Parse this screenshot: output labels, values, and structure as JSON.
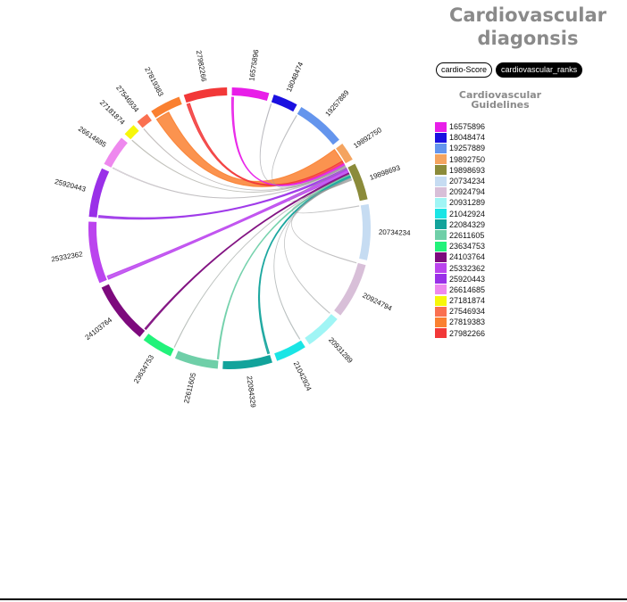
{
  "page": {
    "title": "Cardiovascular diagonsis",
    "toggles": [
      {
        "label": "cardio-Score",
        "active": false
      },
      {
        "label": "cardiovascular_ranks",
        "active": true
      }
    ],
    "legend_title": "Cardiovascular Guidelines"
  },
  "chart_data": {
    "type": "chord",
    "title": "Cardiovascular diagonsis",
    "groups": [
      {
        "id": "16575896",
        "color": "#e81ee8",
        "value": 6
      },
      {
        "id": "18048474",
        "color": "#1a10e0",
        "value": 4
      },
      {
        "id": "19257889",
        "color": "#6495ed",
        "value": 8
      },
      {
        "id": "19892750",
        "color": "#f4a460",
        "value": 3
      },
      {
        "id": "19898693",
        "color": "#8b8b3a",
        "value": 6
      },
      {
        "id": "20734234",
        "color": "#c6dcf2",
        "value": 9
      },
      {
        "id": "20924794",
        "color": "#d8bfd8",
        "value": 9
      },
      {
        "id": "20931289",
        "color": "#a0f5f5",
        "value": 6
      },
      {
        "id": "21042924",
        "color": "#1ae5e5",
        "value": 5
      },
      {
        "id": "22084329",
        "color": "#12a39b",
        "value": 8
      },
      {
        "id": "22611605",
        "color": "#6fcfa8",
        "value": 7
      },
      {
        "id": "23634753",
        "color": "#22f27a",
        "value": 5
      },
      {
        "id": "24103764",
        "color": "#7d0a7d",
        "value": 10
      },
      {
        "id": "25332362",
        "color": "#bb44ee",
        "value": 10
      },
      {
        "id": "25920443",
        "color": "#9a30e8",
        "value": 8
      },
      {
        "id": "26614685",
        "color": "#ee88ee",
        "value": 5
      },
      {
        "id": "27181874",
        "color": "#f7f70a",
        "value": 2
      },
      {
        "id": "27546934",
        "color": "#fa7050",
        "value": 2
      },
      {
        "id": "27819383",
        "color": "#fa8030",
        "value": 5
      },
      {
        "id": "27982266",
        "color": "#f23838",
        "value": 7
      }
    ],
    "links": [
      {
        "source": "27819383",
        "target": "19892750",
        "value": 2.4
      },
      {
        "source": "27982266",
        "target": "19892750",
        "value": 0.5
      },
      {
        "source": "16575896",
        "target": "19892750",
        "value": 0.3
      },
      {
        "source": "18048474",
        "target": "19892750",
        "value": 0.1
      },
      {
        "source": "19257889",
        "target": "19892750",
        "value": 0.1
      },
      {
        "source": "27546934",
        "target": "19892750",
        "value": 0.1
      },
      {
        "source": "27181874",
        "target": "19892750",
        "value": 0.1
      },
      {
        "source": "26614685",
        "target": "19892750",
        "value": 0.15
      },
      {
        "source": "25920443",
        "target": "19892750",
        "value": 0.35
      },
      {
        "source": "25332362",
        "target": "19892750",
        "value": 0.6
      },
      {
        "source": "24103764",
        "target": "19892750",
        "value": 0.25
      },
      {
        "source": "23634753",
        "target": "19892750",
        "value": 0.1
      },
      {
        "source": "22611605",
        "target": "19892750",
        "value": 0.2
      },
      {
        "source": "22084329",
        "target": "19892750",
        "value": 0.3
      },
      {
        "source": "21042924",
        "target": "19892750",
        "value": 0.1
      },
      {
        "source": "20931289",
        "target": "19892750",
        "value": 0.1
      },
      {
        "source": "20924794",
        "target": "19892750",
        "value": 0.1
      },
      {
        "source": "20734234",
        "target": "19892750",
        "value": 0.1
      },
      {
        "source": "19898693",
        "target": "19892750",
        "value": 0.1
      }
    ]
  }
}
